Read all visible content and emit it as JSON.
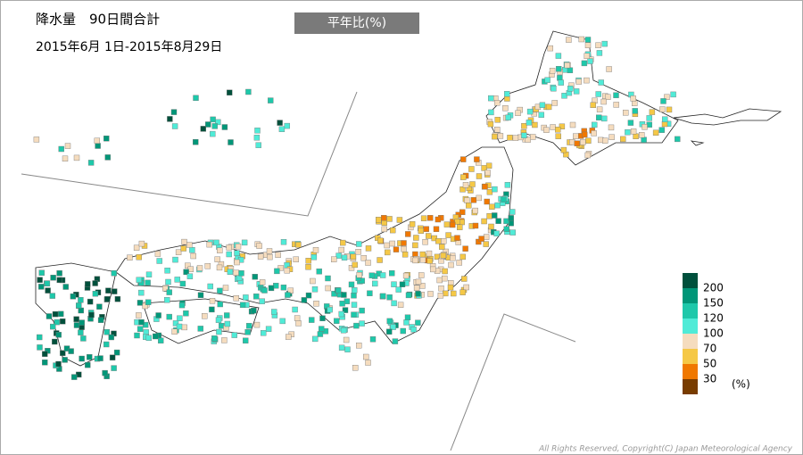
{
  "header": {
    "title": "降水量　90日間合計",
    "period": "2015年6月 1日-2015年8月29日",
    "mode_button": "平年比(%)"
  },
  "legend": {
    "colors": [
      "#00503c",
      "#009678",
      "#1ec8aa",
      "#50ebd7",
      "#f5dcbe",
      "#f5c846",
      "#f07800",
      "#783c00"
    ],
    "breaks": [
      200,
      150,
      120,
      100,
      70,
      50,
      30
    ],
    "unit": "(%)"
  },
  "footer": {
    "copyright": "All Rights Reserved, Copyright(C) Japan Meteorological Agency"
  }
}
